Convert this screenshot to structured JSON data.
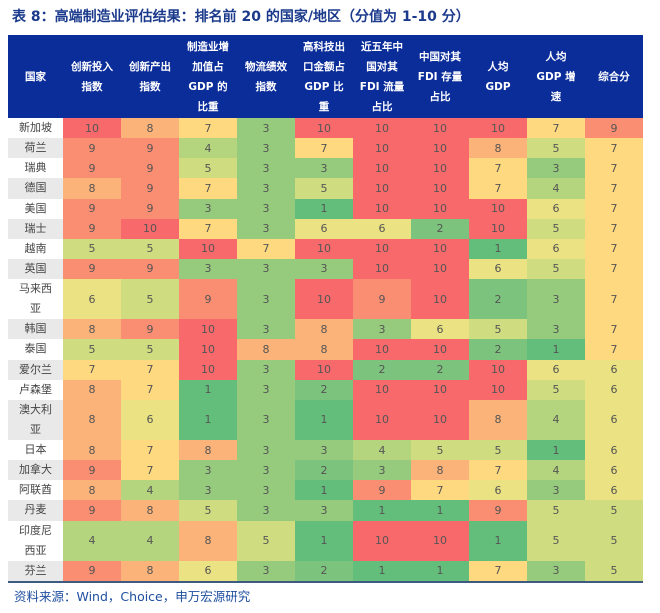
{
  "title": "表 8：高端制造业评估结果：排名前 20 的国家/地区（分值为 1-10 分）",
  "columns": [
    "国家",
    "创新投入\n指数",
    "创新产出\n指数",
    "制造业增\n加值占\nGDP 的\n比重",
    "物流绩效\n指数",
    "高科技出\n口金额占\nGDP 比\n重",
    "近五年中\n国对其\nFDI 流量\n占比",
    "中国对其\nFDI 存量\n占比",
    "人均\nGDP",
    "人均\nGDP 增\n速",
    "综合分"
  ],
  "rows": [
    {
      "country": "新加坡",
      "values": [
        10,
        8,
        7,
        3,
        10,
        10,
        10,
        10,
        7,
        9
      ],
      "double": false
    },
    {
      "country": "荷兰",
      "values": [
        9,
        9,
        4,
        3,
        7,
        10,
        10,
        8,
        5,
        7
      ],
      "double": false
    },
    {
      "country": "瑞典",
      "values": [
        9,
        9,
        5,
        3,
        3,
        10,
        10,
        7,
        3,
        7
      ],
      "double": false
    },
    {
      "country": "德国",
      "values": [
        8,
        9,
        7,
        3,
        5,
        10,
        10,
        7,
        4,
        7
      ],
      "double": false
    },
    {
      "country": "美国",
      "values": [
        9,
        9,
        3,
        3,
        1,
        10,
        10,
        10,
        6,
        7
      ],
      "double": false
    },
    {
      "country": "瑞士",
      "values": [
        9,
        10,
        7,
        3,
        6,
        6,
        2,
        10,
        5,
        7
      ],
      "double": false
    },
    {
      "country": "越南",
      "values": [
        5,
        5,
        10,
        7,
        10,
        10,
        10,
        1,
        6,
        7
      ],
      "double": false
    },
    {
      "country": "英国",
      "values": [
        9,
        9,
        3,
        3,
        3,
        10,
        10,
        6,
        5,
        7
      ],
      "double": false
    },
    {
      "country": "马来西\n亚",
      "values": [
        6,
        5,
        9,
        3,
        10,
        9,
        10,
        2,
        3,
        7
      ],
      "double": true
    },
    {
      "country": "韩国",
      "values": [
        8,
        9,
        10,
        3,
        8,
        3,
        6,
        5,
        3,
        7
      ],
      "double": false
    },
    {
      "country": "泰国",
      "values": [
        5,
        5,
        10,
        8,
        8,
        10,
        10,
        2,
        1,
        7
      ],
      "double": false
    },
    {
      "country": "爱尔兰",
      "values": [
        7,
        7,
        10,
        3,
        10,
        2,
        2,
        10,
        6,
        6
      ],
      "double": false
    },
    {
      "country": "卢森堡",
      "values": [
        8,
        7,
        1,
        3,
        2,
        10,
        10,
        10,
        5,
        6
      ],
      "double": false
    },
    {
      "country": "澳大利\n亚",
      "values": [
        8,
        6,
        1,
        3,
        1,
        10,
        10,
        8,
        4,
        6
      ],
      "double": true
    },
    {
      "country": "日本",
      "values": [
        8,
        7,
        8,
        3,
        3,
        4,
        5,
        5,
        1,
        6
      ],
      "double": false
    },
    {
      "country": "加拿大",
      "values": [
        9,
        7,
        3,
        3,
        2,
        3,
        8,
        7,
        4,
        6
      ],
      "double": false
    },
    {
      "country": "阿联酋",
      "values": [
        8,
        4,
        3,
        3,
        1,
        9,
        7,
        6,
        3,
        6
      ],
      "double": false
    },
    {
      "country": "丹麦",
      "values": [
        9,
        8,
        5,
        3,
        3,
        1,
        1,
        9,
        5,
        5
      ],
      "double": false
    },
    {
      "country": "印度尼\n西亚",
      "values": [
        4,
        4,
        8,
        5,
        1,
        10,
        10,
        1,
        5,
        5
      ],
      "double": true
    },
    {
      "country": "芬兰",
      "values": [
        9,
        8,
        6,
        3,
        2,
        1,
        1,
        7,
        3,
        5
      ],
      "double": false
    }
  ],
  "color_scale": {
    "1": "#63be7b",
    "2": "#7cc47d",
    "3": "#96cb7d",
    "4": "#b4d47e",
    "5": "#cfdd80",
    "6": "#ebe383",
    "7": "#fed980",
    "8": "#fcb379",
    "9": "#fa8e72",
    "10": "#f8696b"
  },
  "source": "资料来源：Wind，Choice，申万宏源研究"
}
